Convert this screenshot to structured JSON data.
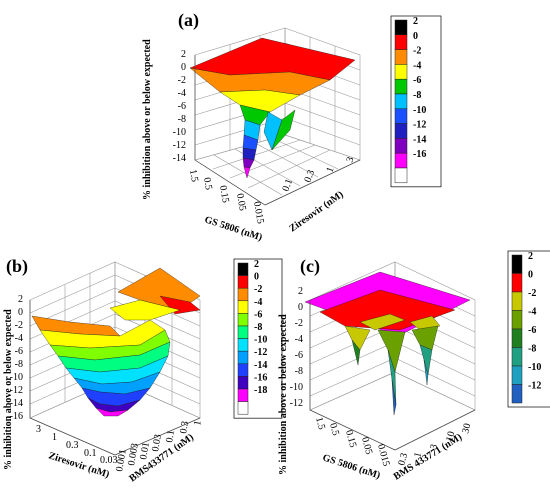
{
  "chart_data": [
    {
      "panel": "(a)",
      "type": "surface3d",
      "zlabel": "% inhibition above or below expected",
      "zticks": [
        "2",
        "0",
        "-2",
        "-4",
        "-6",
        "-8",
        "-10",
        "-12",
        "-14"
      ],
      "xlabel": "GS 5806 (nM)",
      "xticks": [
        "1.5",
        "0.5",
        "0.15",
        "0.05",
        "0.015"
      ],
      "ylabel": "Ziresovir (nM)",
      "yticks": [
        "0.1",
        "0.3",
        "1",
        "3"
      ],
      "legend": [
        {
          "label": "2",
          "color": "#000000"
        },
        {
          "label": "0",
          "color": "#ff0000"
        },
        {
          "label": "-2",
          "color": "#ff8c00"
        },
        {
          "label": "-4",
          "color": "#ffff00"
        },
        {
          "label": "-6",
          "color": "#00c800"
        },
        {
          "label": "-8",
          "color": "#00c0ff"
        },
        {
          "label": "-10",
          "color": "#1a50ff"
        },
        {
          "label": "-12",
          "color": "#2020c0"
        },
        {
          "label": "-14",
          "color": "#8000c0"
        },
        {
          "label": "-16",
          "color": "#ff00ff"
        },
        {
          "label": "",
          "color": "#ffffff"
        }
      ]
    },
    {
      "panel": "(b)",
      "type": "surface3d",
      "zlabel": "% inhibition above or below expected",
      "zticks": [
        "2",
        "0",
        "-2",
        "-4",
        "-6",
        "-8",
        "-10",
        "-12",
        "-14",
        "-16"
      ],
      "xlabel": "Ziresovir (nM)",
      "xticks": [
        "3",
        "1",
        "0.3",
        "0.1",
        "0.03"
      ],
      "ylabel": "BMS433771 (nM)",
      "yticks": [
        "0.001",
        "0.003",
        "0.01",
        "0.03",
        "0.1",
        "0.3",
        "1"
      ],
      "legend": [
        {
          "label": "2",
          "color": "#000000"
        },
        {
          "label": "0",
          "color": "#ff0000"
        },
        {
          "label": "-2",
          "color": "#ff8c00"
        },
        {
          "label": "-4",
          "color": "#ffff00"
        },
        {
          "label": "-6",
          "color": "#80ff00"
        },
        {
          "label": "-8",
          "color": "#00ff80"
        },
        {
          "label": "-10",
          "color": "#00e0ff"
        },
        {
          "label": "-12",
          "color": "#00a0ff"
        },
        {
          "label": "-14",
          "color": "#2040ff"
        },
        {
          "label": "-16",
          "color": "#4000c0"
        },
        {
          "label": "-18",
          "color": "#ff00ff"
        },
        {
          "label": "",
          "color": "#ffffff"
        }
      ]
    },
    {
      "panel": "(c)",
      "type": "surface3d",
      "zlabel": "% inhibition above or below expected",
      "zticks": [
        "2",
        "0",
        "-2",
        "-4",
        "-6",
        "-8",
        "-10",
        "-12"
      ],
      "xlabel": "GS 5806 (nM)",
      "xticks": [
        "1.5",
        "0.5",
        "0.15",
        "0.05",
        "0.015"
      ],
      "ylabel": "BMS 433771 (nM)",
      "yticks": [
        "0.3",
        "1",
        "3",
        "10",
        "30"
      ],
      "legend": [
        {
          "label": "2",
          "color": "#000000"
        },
        {
          "label": "0",
          "color": "#ff0000"
        },
        {
          "label": "-2",
          "color": "#c8c800"
        },
        {
          "label": "-4",
          "color": "#6aa000"
        },
        {
          "label": "-6",
          "color": "#208020"
        },
        {
          "label": "-8",
          "color": "#20a080"
        },
        {
          "label": "-10",
          "color": "#20a0c0"
        },
        {
          "label": "-12",
          "color": "#2060c0"
        }
      ]
    }
  ]
}
